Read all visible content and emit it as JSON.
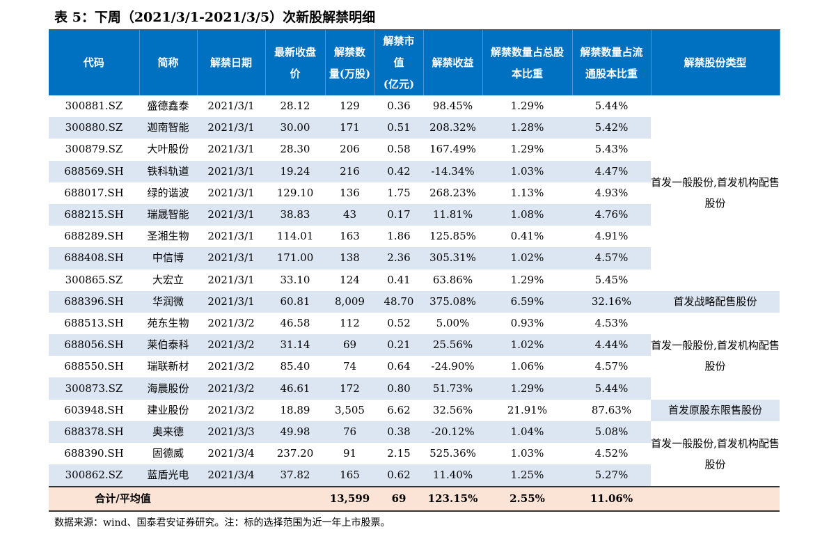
{
  "title": "表 5：下周（2021/3/1-2021/3/5）次新股解禁明细",
  "headers": {
    "code": "代码",
    "name": "简称",
    "date": "解禁日期",
    "price1": "最新收盘",
    "price2": "价",
    "qty1": "解禁数",
    "qty2": "量(万股)",
    "mv1": "解禁市",
    "mv2": "值",
    "mv3": "(亿元)",
    "gain": "解禁收益",
    "total1": "解禁数量占总股",
    "total2": "本比重",
    "float1": "解禁数量占流",
    "float2": "通股本比重",
    "type": "解禁股份类型"
  },
  "rows": [
    [
      "300881.SZ",
      "盛德鑫泰",
      "2021/3/1",
      "28.12",
      "129",
      "0.36",
      "98.45%",
      "1.29%",
      "5.44%"
    ],
    [
      "300880.SZ",
      "迦南智能",
      "2021/3/1",
      "30.00",
      "171",
      "0.51",
      "208.32%",
      "1.28%",
      "5.42%"
    ],
    [
      "300879.SZ",
      "大叶股份",
      "2021/3/1",
      "28.30",
      "206",
      "0.58",
      "167.49%",
      "1.29%",
      "5.43%"
    ],
    [
      "688569.SH",
      "铁科轨道",
      "2021/3/1",
      "19.24",
      "216",
      "0.42",
      "-14.34%",
      "1.03%",
      "4.47%"
    ],
    [
      "688017.SH",
      "绿的谐波",
      "2021/3/1",
      "129.10",
      "136",
      "1.75",
      "268.23%",
      "1.13%",
      "4.93%"
    ],
    [
      "688215.SH",
      "瑞晟智能",
      "2021/3/1",
      "38.83",
      "43",
      "0.17",
      "11.81%",
      "1.08%",
      "4.76%"
    ],
    [
      "688289.SH",
      "圣湘生物",
      "2021/3/1",
      "114.01",
      "163",
      "1.86",
      "125.85%",
      "0.41%",
      "4.91%"
    ],
    [
      "688408.SH",
      "中信博",
      "2021/3/1",
      "171.00",
      "138",
      "2.36",
      "305.31%",
      "1.02%",
      "4.57%"
    ],
    [
      "300865.SZ",
      "大宏立",
      "2021/3/1",
      "33.10",
      "124",
      "0.41",
      "63.86%",
      "1.29%",
      "5.45%"
    ],
    [
      "688396.SH",
      "华润微",
      "2021/3/1",
      "60.81",
      "8,009",
      "48.70",
      "375.08%",
      "6.59%",
      "32.16%"
    ],
    [
      "688513.SH",
      "苑东生物",
      "2021/3/2",
      "46.58",
      "112",
      "0.52",
      "5.00%",
      "0.93%",
      "4.53%"
    ],
    [
      "688056.SH",
      "莱伯泰科",
      "2021/3/2",
      "31.14",
      "69",
      "0.21",
      "25.56%",
      "1.02%",
      "4.44%"
    ],
    [
      "688550.SH",
      "瑞联新材",
      "2021/3/2",
      "85.40",
      "74",
      "0.64",
      "-24.90%",
      "1.06%",
      "4.57%"
    ],
    [
      "300873.SZ",
      "海晨股份",
      "2021/3/2",
      "46.61",
      "172",
      "0.80",
      "51.73%",
      "1.29%",
      "5.44%"
    ],
    [
      "603948.SH",
      "建业股份",
      "2021/3/2",
      "18.89",
      "3,505",
      "6.62",
      "32.56%",
      "21.91%",
      "87.63%"
    ],
    [
      "688378.SH",
      "奥来德",
      "2021/3/3",
      "49.98",
      "76",
      "0.38",
      "-20.12%",
      "1.04%",
      "5.08%"
    ],
    [
      "688390.SH",
      "固德威",
      "2021/3/4",
      "237.20",
      "91",
      "2.15",
      "525.36%",
      "1.03%",
      "4.52%"
    ],
    [
      "300862.SZ",
      "蓝盾光电",
      "2021/3/4",
      "37.82",
      "165",
      "0.62",
      "11.40%",
      "1.25%",
      "5.27%"
    ]
  ],
  "types": [
    {
      "start": 0,
      "span": 9,
      "label": "首发一般股份,首发机构配售股份",
      "blue": false
    },
    {
      "start": 9,
      "span": 1,
      "label": "首发战略配售股份",
      "blue": true
    },
    {
      "start": 10,
      "span": 4,
      "label": "首发一般股份,首发机构配售股份",
      "blue": false
    },
    {
      "start": 14,
      "span": 1,
      "label": "首发原股东限售股份",
      "blue": true
    },
    {
      "start": 15,
      "span": 3,
      "label": "首发一般股份,首发机构配售股份",
      "blue": false
    }
  ],
  "total": {
    "label": "合计/平均值",
    "qty": "13,599",
    "mv": "69",
    "gain": "123.15%",
    "total_ratio": "2.55%",
    "float_ratio": "11.06%"
  },
  "source": "数据来源：wind、国泰君安证券研究。注：标的选择范围为近一年上市股票。",
  "colors": {
    "header": "#0070C0",
    "stripe": "#DCE6F2",
    "total": "#FBE3D6"
  }
}
